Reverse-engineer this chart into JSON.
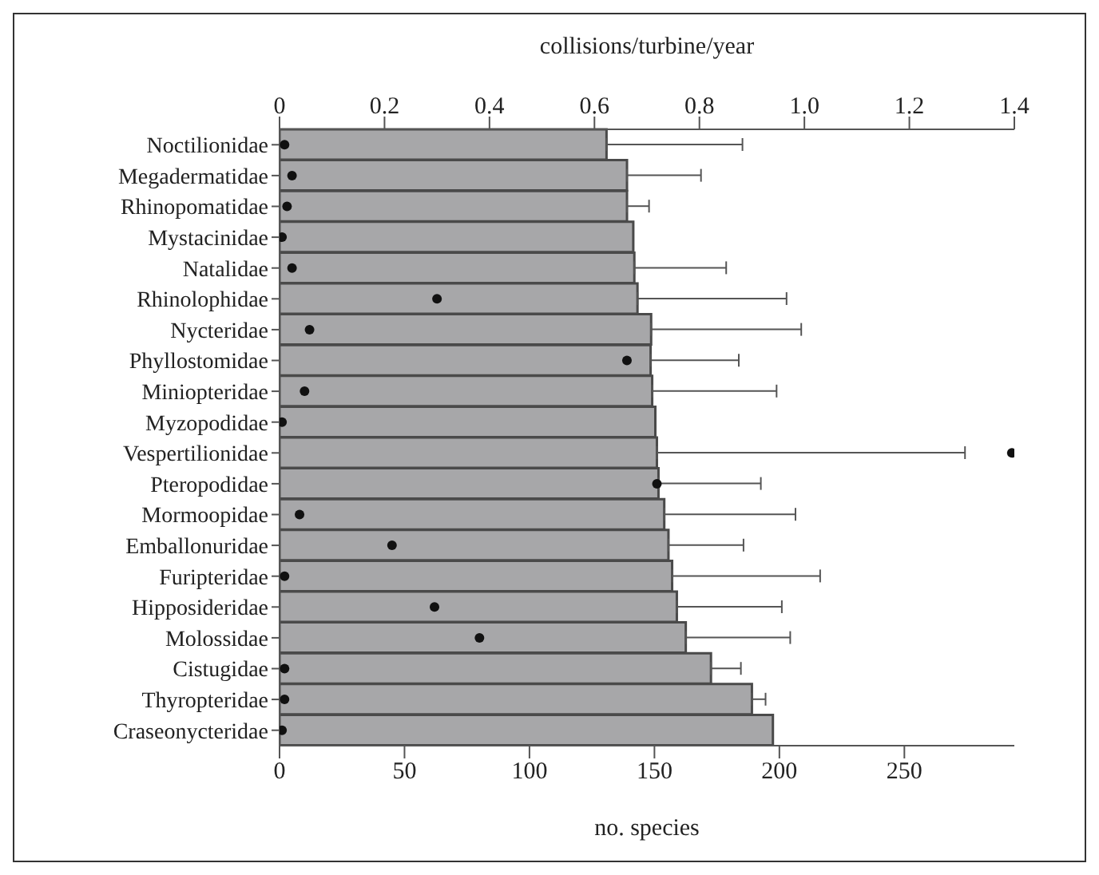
{
  "chart_data": {
    "type": "bar",
    "orientation": "horizontal",
    "xlabel": "no. species",
    "x2label": "collisions/turbine/year",
    "categories": [
      "Noctilionidae",
      "Megadermatidae",
      "Rhinopomatidae",
      "Mystacinidae",
      "Natalidae",
      "Rhinolophidae",
      "Nycteridae",
      "Phyllostomidae",
      "Miniopteridae",
      "Myzopodidae",
      "Vespertilionidae",
      "Pteropodidae",
      "Mormoopidae",
      "Emballonuridae",
      "Furipteridae",
      "Hipposideridae",
      "Molossidae",
      "Cistugidae",
      "Thyropteridae",
      "Craseonycteridae"
    ],
    "series": [
      {
        "axis": "x2",
        "color": "#a7a7a9",
        "values": [
          0.623,
          0.662,
          0.662,
          0.674,
          0.676,
          0.682,
          0.708,
          0.707,
          0.71,
          0.716,
          0.719,
          0.722,
          0.733,
          0.741,
          0.748,
          0.757,
          0.774,
          0.822,
          0.9,
          0.94
        ],
        "errors": [
          [
            0.623,
            0.882
          ],
          [
            0.662,
            0.803
          ],
          [
            0.662,
            0.704
          ],
          null,
          [
            0.676,
            0.851
          ],
          [
            0.682,
            0.966
          ],
          [
            0.708,
            0.994
          ],
          [
            0.707,
            0.875
          ],
          [
            0.71,
            0.947
          ],
          null,
          [
            0.719,
            1.306
          ],
          [
            0.722,
            0.917
          ],
          [
            0.733,
            0.983
          ],
          [
            0.741,
            0.884
          ],
          [
            0.748,
            1.03
          ],
          [
            0.757,
            0.957
          ],
          [
            0.774,
            0.973
          ],
          [
            0.822,
            0.879
          ],
          [
            0.9,
            0.926
          ],
          null
        ]
      },
      {
        "type": "scatter",
        "color": "#111111",
        "values": [
          2,
          5,
          3,
          1,
          5,
          63,
          12,
          139,
          10,
          1,
          293,
          151,
          8,
          45,
          2,
          62,
          80,
          2,
          2,
          1
        ]
      }
    ],
    "xlim": [
      0,
      294
    ],
    "xticks": [
      0,
      50,
      100,
      150,
      200,
      250
    ],
    "x2lim": [
      0,
      1.4
    ],
    "x2ticks": [
      0,
      0.2,
      0.4,
      0.6,
      0.8,
      {
        "value": 1,
        "label": "1.0"
      },
      1.2,
      1.4
    ],
    "marker": "circle"
  }
}
